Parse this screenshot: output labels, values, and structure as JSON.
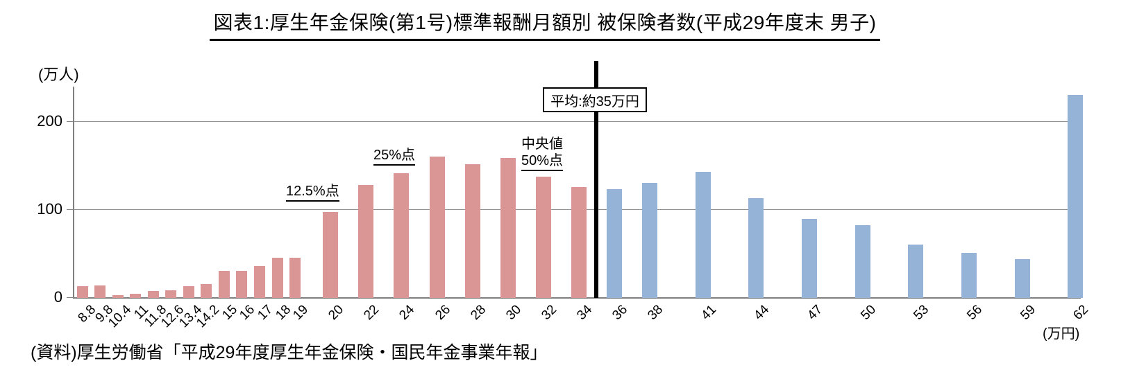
{
  "title": "図表1:厚生年金保険(第1号)標準報酬月額別 被保険者数(平成29年度末 男子)",
  "source": "(資料)厚生労働省「平成29年度厚生年金保険・国民年金事業年報」",
  "chart_data": {
    "type": "bar",
    "categories": [
      8.8,
      9.8,
      10.4,
      11,
      11.8,
      12.6,
      13.4,
      14.2,
      15,
      16,
      17,
      18,
      19,
      20,
      22,
      24,
      26,
      28,
      30,
      32,
      34,
      36,
      38,
      41,
      44,
      47,
      50,
      53,
      56,
      59,
      62
    ],
    "values": [
      13,
      14,
      3,
      5,
      8,
      9,
      13,
      16,
      31,
      31,
      36,
      46,
      46,
      98,
      128,
      142,
      161,
      152,
      159,
      138,
      126,
      124,
      131,
      143,
      113,
      90,
      83,
      61,
      51,
      44,
      231
    ],
    "y_unit_label": "(万人)",
    "x_unit_label": "(万円)",
    "y_ticks": [
      0,
      100,
      200
    ],
    "ylim": [
      0,
      240
    ],
    "grid": "horizontal",
    "legend": "none",
    "color_split_after_category": 34,
    "bar_color_low": "#D99694",
    "bar_color_high": "#95B3D7",
    "axis_color": "#7f7f7f",
    "gridline_color": "#8f8f8f",
    "average_line": {
      "at_value": 35,
      "label": "平均:約35万円",
      "color": "#000000"
    },
    "annotations": [
      {
        "text": "12.5%点",
        "at_category": 20,
        "underline": true
      },
      {
        "text": "25%点",
        "at_category": 24,
        "underline": true
      },
      {
        "text": "中央値",
        "at_category": 32,
        "underline": false
      },
      {
        "text": "50%点",
        "at_category": 32,
        "underline": true
      }
    ]
  }
}
